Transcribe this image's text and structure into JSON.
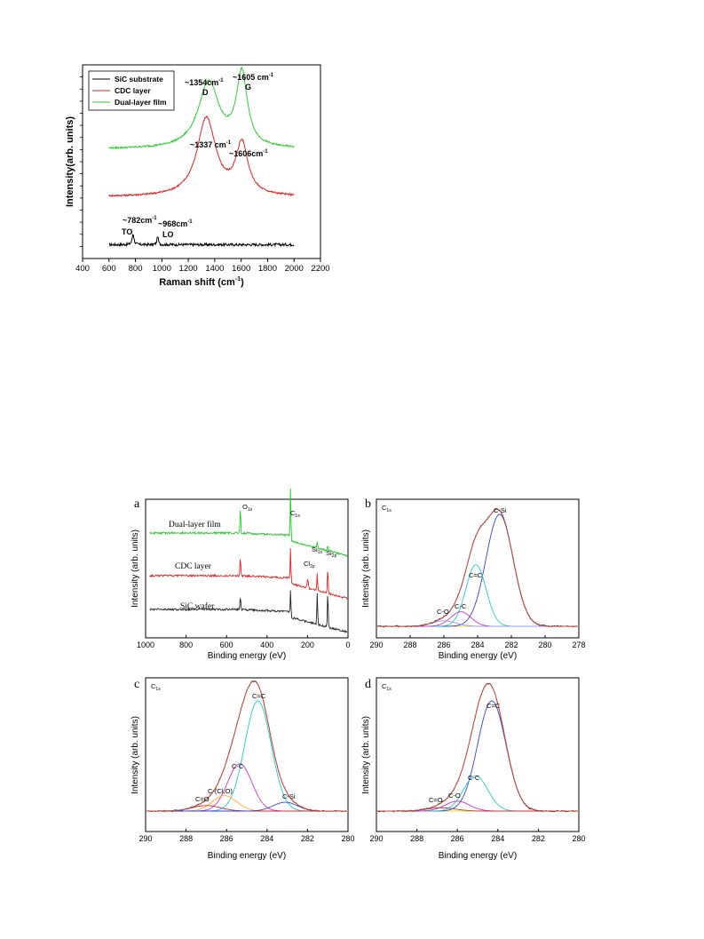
{
  "chart_data": [
    {
      "id": "raman",
      "type": "line",
      "xlabel": "Raman shift (cm",
      "xlabel_sup": "-1",
      "xlabel_end": ")",
      "ylabel": "Intensity(arb. units)",
      "xlim": [
        400,
        2200
      ],
      "xticks": [
        "400",
        "600",
        "800",
        "1000",
        "1200",
        "1400",
        "1600",
        "1800",
        "2000",
        "2200"
      ],
      "legend_position": "top-left",
      "series": [
        {
          "name": "SiC substrate",
          "color": "#000000",
          "offset": 0,
          "baseline": 0.03,
          "peaks": [
            [
              782,
              0.5,
              8
            ],
            [
              968,
              0.4,
              6
            ]
          ],
          "x": [
            600,
            2000
          ]
        },
        {
          "name": "CDC layer",
          "color": "#dd2222",
          "offset": 2.1,
          "baseline": 0.1,
          "peaks": [
            [
              1337,
              3.55,
              85
            ],
            [
              1606,
              2.3,
              55
            ]
          ],
          "x": [
            600,
            2000
          ]
        },
        {
          "name": "Dual-layer film",
          "color": "#33cc33",
          "offset": 4.25,
          "baseline": 0.12,
          "peaks": [
            [
              1354,
              3.0,
              95
            ],
            [
              1605,
              3.3,
              50
            ]
          ],
          "x": [
            600,
            2000
          ]
        }
      ],
      "annotations": [
        {
          "text": "~1354cm",
          "sup": "-1",
          "sub_label": "D"
        },
        {
          "text": "~1605 cm",
          "sup": "-1",
          "sub_label": "G"
        },
        {
          "text": "~1337 cm",
          "sup": "-1"
        },
        {
          "text": "~1606cm",
          "sup": "-1"
        },
        {
          "text": "~782cm",
          "sup": "-1",
          "sub_label": "TO"
        },
        {
          "text": "~968cm",
          "sup": "-1",
          "sub_label": "LO"
        }
      ]
    },
    {
      "id": "xps_a",
      "panel": "a",
      "type": "line",
      "xlabel": "Binding energy (eV)",
      "ylabel": "Intensity (arb. units)",
      "xlim": [
        1000,
        0
      ],
      "xticks": [
        "1000",
        "800",
        "600",
        "400",
        "200",
        "0"
      ],
      "series": [
        {
          "name": "Dual-layer film",
          "color": "#22cc22"
        },
        {
          "name": "CDC layer",
          "color": "#dd2222"
        },
        {
          "name": "SiC wafer",
          "color": "#222222"
        }
      ],
      "peak_labels": [
        {
          "text": "O",
          "sub": "1s",
          "x": 532
        },
        {
          "text": "C",
          "sub": "1s",
          "x": 284
        },
        {
          "text": "Si",
          "sub": "1s",
          "x": 152
        },
        {
          "text": "Si",
          "sub": "2p",
          "x": 100
        },
        {
          "text": "Cl",
          "sub": "2p",
          "x": 199
        }
      ]
    },
    {
      "id": "xps_b",
      "panel": "b",
      "type": "line",
      "corner_label": "C",
      "corner_sub": "1s",
      "xlabel": "Binding energy (eV)",
      "ylabel": "Intensity (arb. units)",
      "xlim": [
        290,
        278
      ],
      "xticks": [
        "290",
        "288",
        "286",
        "284",
        "282",
        "280",
        "278"
      ],
      "components": [
        {
          "name": "C-Si",
          "center": 282.7,
          "amp": 1.0,
          "width": 0.8,
          "color": "#3344cc"
        },
        {
          "name": "C=C",
          "center": 284.1,
          "amp": 0.55,
          "width": 0.6,
          "color": "#22cccc"
        },
        {
          "name": "C-C",
          "center": 285.0,
          "amp": 0.13,
          "width": 0.6,
          "color": "#cc33cc"
        },
        {
          "name": "C-O",
          "center": 286.0,
          "amp": 0.05,
          "width": 0.7,
          "color": "#9999ff"
        }
      ]
    },
    {
      "id": "xps_c",
      "panel": "c",
      "type": "line",
      "corner_label": "C",
      "corner_sub": "1s",
      "xlabel": "Binding energy (eV)",
      "ylabel": "Intensity (arb. units)",
      "xlim": [
        290,
        280
      ],
      "xticks": [
        "290",
        "288",
        "286",
        "284",
        "282",
        "280"
      ],
      "components": [
        {
          "name": "C=C",
          "center": 284.45,
          "amp": 1.0,
          "width": 0.65,
          "color": "#22cccc"
        },
        {
          "name": "C-C",
          "center": 285.35,
          "amp": 0.43,
          "width": 0.6,
          "color": "#cc33cc"
        },
        {
          "name": "C-(Cl,O)",
          "center": 286.1,
          "amp": 0.14,
          "width": 0.6,
          "color": "#ffaa22"
        },
        {
          "name": "C=O",
          "center": 287.0,
          "amp": 0.05,
          "width": 0.7,
          "color": "#cc3333"
        },
        {
          "name": "C-Si",
          "center": 283.1,
          "amp": 0.08,
          "width": 0.6,
          "color": "#3344cc"
        }
      ]
    },
    {
      "id": "xps_d",
      "panel": "d",
      "type": "line",
      "corner_label": "C",
      "corner_sub": "1s",
      "xlabel": "Binding energy (eV)",
      "ylabel": "Intensity (arb. units)",
      "xlim": [
        290,
        280
      ],
      "xticks": [
        "290",
        "288",
        "286",
        "284",
        "282",
        "280"
      ],
      "components": [
        {
          "name": "C=C",
          "center": 284.3,
          "amp": 1.0,
          "width": 0.7,
          "color": "#3344cc"
        },
        {
          "name": "C-C",
          "center": 285.1,
          "amp": 0.32,
          "width": 0.6,
          "color": "#22cccc"
        },
        {
          "name": "C-O",
          "center": 286.0,
          "amp": 0.09,
          "width": 0.6,
          "color": "#cc33cc"
        },
        {
          "name": "C=O",
          "center": 286.8,
          "amp": 0.03,
          "width": 0.7,
          "color": "#cc3333"
        }
      ]
    }
  ]
}
